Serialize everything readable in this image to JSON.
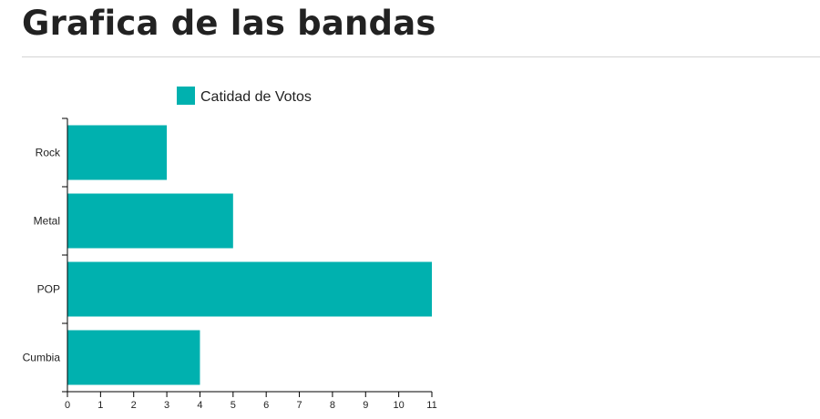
{
  "page": {
    "title": "Grafica de las bandas"
  },
  "colors": {
    "bar": "#00b1af",
    "axis": "#000000",
    "text": "#222222",
    "divider": "#d4d4d4"
  },
  "chart_data": {
    "type": "bar",
    "orientation": "horizontal",
    "categories": [
      "Rock",
      "Metal",
      "POP",
      "Cumbia"
    ],
    "series": [
      {
        "name": "Catidad de Votos",
        "values": [
          3,
          5,
          11,
          4
        ]
      }
    ],
    "xlim": [
      0,
      11
    ],
    "xticks": [
      0,
      1,
      2,
      3,
      4,
      5,
      6,
      7,
      8,
      9,
      10,
      11
    ],
    "xlabel": "",
    "ylabel": "",
    "legend": "top",
    "grid": false
  }
}
